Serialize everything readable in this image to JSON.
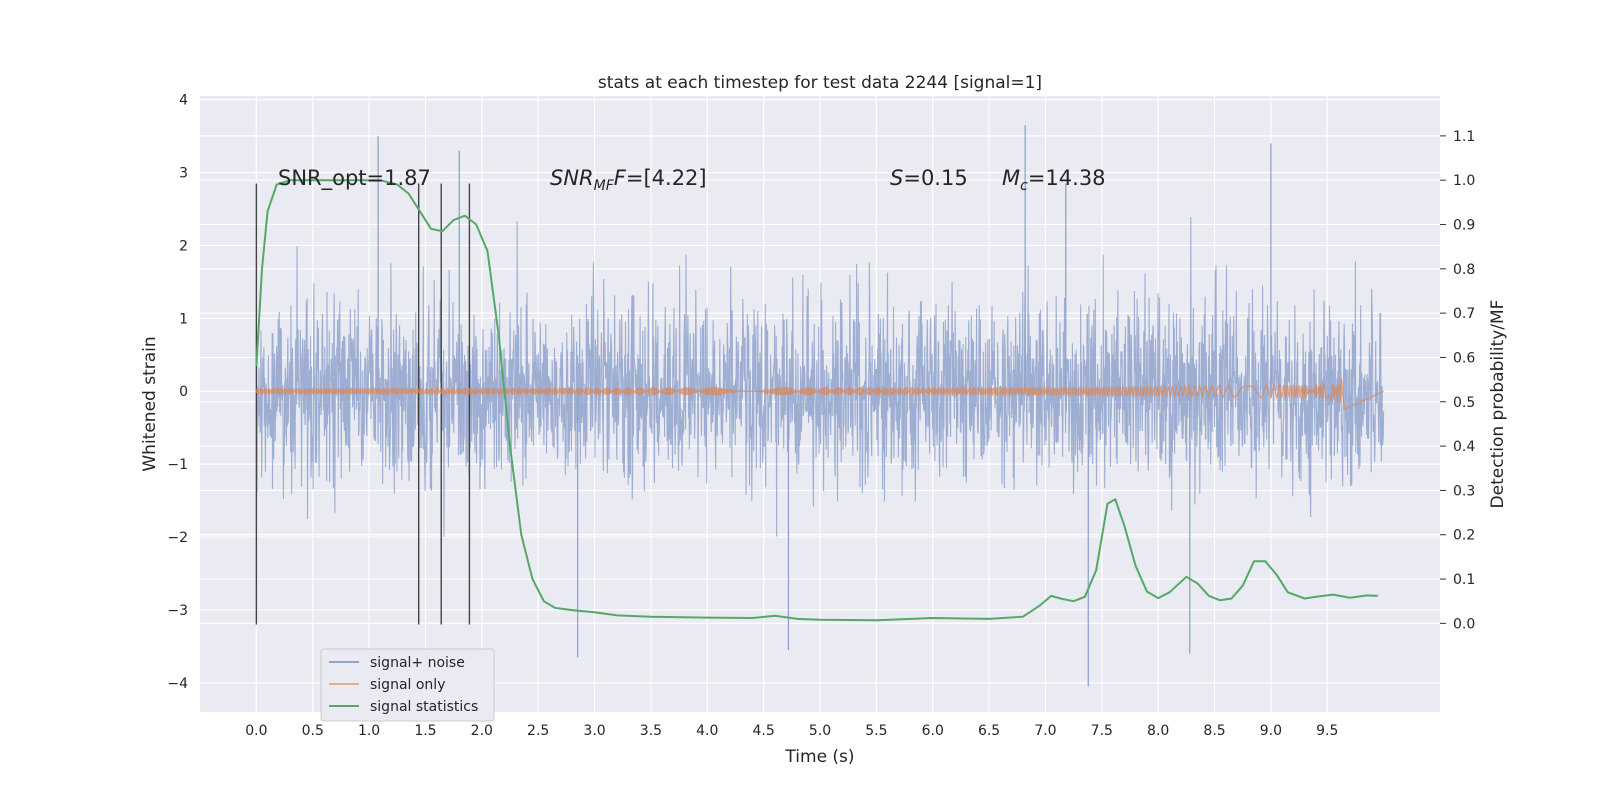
{
  "chart_data": {
    "type": "line",
    "title": "stats at each timestep for test data 2244 [signal=1]",
    "xlabel": "Time (s)",
    "ylabel_left": "Whitened strain",
    "ylabel_right": "Detection probability/MF",
    "xlim": [
      -0.5,
      10.5
    ],
    "ylim_left": [
      -4.4,
      4.05
    ],
    "ylim_right": [
      -0.2,
      1.19
    ],
    "x_ticks": [
      "0.0",
      "0.5",
      "1.0",
      "1.5",
      "2.0",
      "2.5",
      "3.0",
      "3.5",
      "4.0",
      "4.5",
      "5.0",
      "5.5",
      "6.0",
      "6.5",
      "7.0",
      "7.5",
      "8.0",
      "8.5",
      "9.0",
      "9.5"
    ],
    "y_ticks_left": [
      "−4",
      "−3",
      "−2",
      "−1",
      "0",
      "1",
      "2",
      "3",
      "4"
    ],
    "y_ticks_right": [
      "0.0",
      "0.1",
      "0.2",
      "0.3",
      "0.4",
      "0.5",
      "0.6",
      "0.7",
      "0.8",
      "0.9",
      "1.0",
      "1.1"
    ],
    "grid": true,
    "legend_position": "lower-left",
    "annotations": {
      "snr_opt": "SNR_opt=1.87",
      "snr_mf_label": "SNR",
      "snr_mf_sub": "MF",
      "snr_mf_value": "=[4.22]",
      "s_label": "S",
      "s_value": "=0.15",
      "mc_label": "M",
      "mc_sub": "c",
      "mc_value": "=14.38"
    },
    "vertical_lines_x": [
      0.0,
      1.44,
      1.64,
      1.89
    ],
    "series": [
      {
        "name": "signal+ noise",
        "color": "#8fa3cc",
        "axis": "left",
        "x_range": [
          0.0,
          10.0
        ],
        "typical_amplitude": 1.55,
        "extreme_peaks": [
          [
            1.08,
            3.5
          ],
          [
            1.8,
            3.3
          ],
          [
            6.82,
            3.65
          ],
          [
            7.18,
            2.85
          ],
          [
            9.0,
            3.4
          ],
          [
            2.85,
            -3.65
          ],
          [
            4.72,
            -3.55
          ],
          [
            7.38,
            -4.05
          ],
          [
            8.28,
            -3.6
          ]
        ]
      },
      {
        "name": "signal only",
        "color": "#dd8452",
        "axis": "left",
        "chirp_end_x": 9.65,
        "chirp_peak_amplitude": 0.3
      },
      {
        "name": "signal statistics",
        "color": "#55a868",
        "axis": "right",
        "points": [
          [
            0.0,
            0.58
          ],
          [
            0.05,
            0.8
          ],
          [
            0.1,
            0.93
          ],
          [
            0.18,
            0.99
          ],
          [
            0.3,
            1.0
          ],
          [
            0.6,
            1.0
          ],
          [
            0.9,
            1.0
          ],
          [
            1.1,
            1.0
          ],
          [
            1.25,
            0.99
          ],
          [
            1.35,
            0.97
          ],
          [
            1.45,
            0.93
          ],
          [
            1.55,
            0.89
          ],
          [
            1.65,
            0.885
          ],
          [
            1.75,
            0.91
          ],
          [
            1.85,
            0.92
          ],
          [
            1.95,
            0.9
          ],
          [
            2.05,
            0.84
          ],
          [
            2.15,
            0.65
          ],
          [
            2.25,
            0.4
          ],
          [
            2.35,
            0.2
          ],
          [
            2.45,
            0.1
          ],
          [
            2.55,
            0.05
          ],
          [
            2.65,
            0.035
          ],
          [
            2.8,
            0.03
          ],
          [
            3.0,
            0.025
          ],
          [
            3.2,
            0.018
          ],
          [
            3.5,
            0.015
          ],
          [
            4.0,
            0.013
          ],
          [
            4.4,
            0.012
          ],
          [
            4.6,
            0.017
          ],
          [
            4.8,
            0.01
          ],
          [
            5.0,
            0.008
          ],
          [
            5.5,
            0.007
          ],
          [
            6.0,
            0.012
          ],
          [
            6.5,
            0.01
          ],
          [
            6.8,
            0.015
          ],
          [
            6.95,
            0.04
          ],
          [
            7.05,
            0.062
          ],
          [
            7.15,
            0.055
          ],
          [
            7.25,
            0.05
          ],
          [
            7.35,
            0.06
          ],
          [
            7.45,
            0.12
          ],
          [
            7.55,
            0.27
          ],
          [
            7.62,
            0.28
          ],
          [
            7.7,
            0.22
          ],
          [
            7.8,
            0.13
          ],
          [
            7.9,
            0.072
          ],
          [
            8.0,
            0.057
          ],
          [
            8.1,
            0.07
          ],
          [
            8.25,
            0.105
          ],
          [
            8.35,
            0.09
          ],
          [
            8.45,
            0.062
          ],
          [
            8.55,
            0.052
          ],
          [
            8.65,
            0.056
          ],
          [
            8.75,
            0.085
          ],
          [
            8.85,
            0.14
          ],
          [
            8.95,
            0.14
          ],
          [
            9.05,
            0.11
          ],
          [
            9.15,
            0.07
          ],
          [
            9.3,
            0.056
          ],
          [
            9.4,
            0.06
          ],
          [
            9.55,
            0.065
          ],
          [
            9.7,
            0.058
          ],
          [
            9.85,
            0.063
          ],
          [
            9.95,
            0.062
          ]
        ]
      }
    ]
  }
}
